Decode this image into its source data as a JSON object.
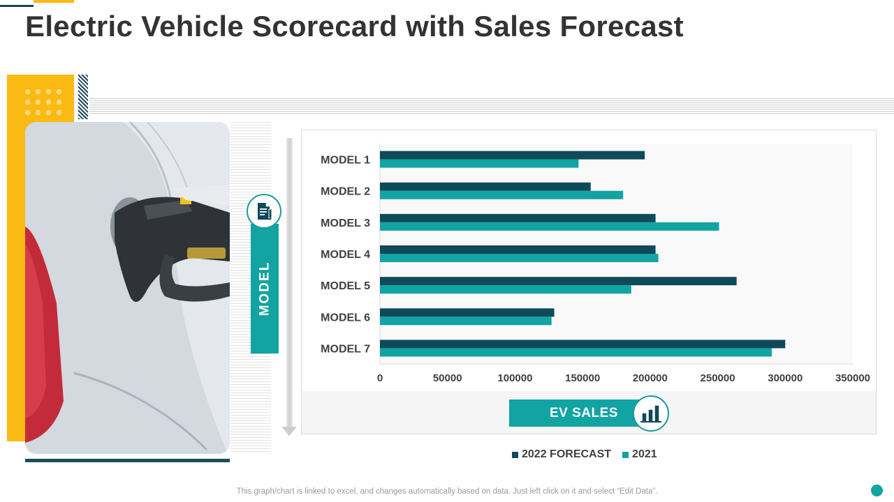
{
  "title": "Electric Vehicle Scorecard with Sales Forecast",
  "model_axis_label": "MODEL",
  "ev_sales_label": "EV SALES",
  "footnote": "This graph/chart is linked to excel,  and changes automatically based on data. Just left click on it and select “Edit Data”.",
  "icons": {
    "model_icon": "document-pen-icon",
    "ev_icon": "bar-chart-icon"
  },
  "colors": {
    "accent_yellow": "#fbb913",
    "teal": "#12a3a3",
    "dark_teal": "#0e4a5a"
  },
  "chart_data": {
    "type": "bar",
    "orientation": "horizontal",
    "categories": [
      "MODEL 1",
      "MODEL 2",
      "MODEL 3",
      "MODEL 4",
      "MODEL 5",
      "MODEL 6",
      "MODEL 7"
    ],
    "series": [
      {
        "name": "2022 FORECAST",
        "color": "#0e4a5a",
        "values": [
          196000,
          156000,
          204000,
          204000,
          264000,
          129000,
          300000
        ]
      },
      {
        "name": "2021",
        "color": "#12a3a3",
        "values": [
          147000,
          180000,
          251000,
          206000,
          186000,
          127000,
          290000
        ]
      }
    ],
    "xlim": [
      0,
      350000
    ],
    "xticks": [
      "0",
      "50000",
      "100000",
      "150000",
      "200000",
      "250000",
      "300000",
      "350000"
    ],
    "legend": "bottom",
    "grid": false
  }
}
